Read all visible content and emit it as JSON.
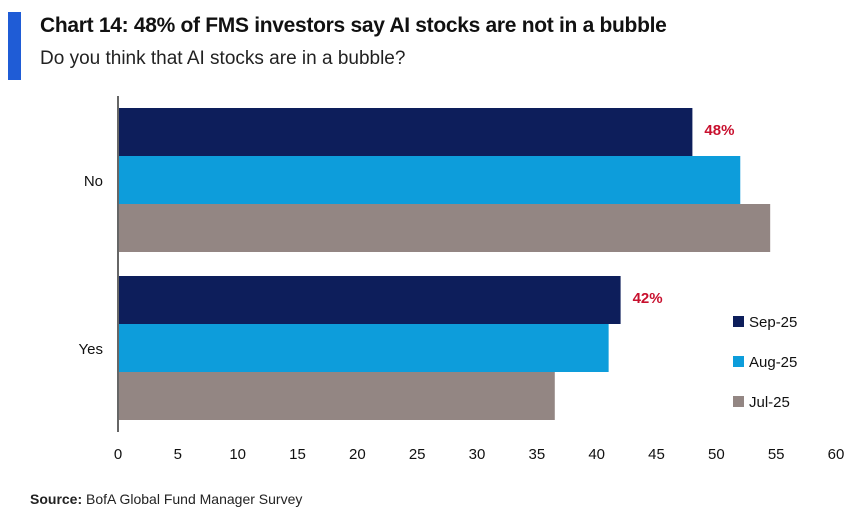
{
  "header": {
    "title": "Chart 14: 48% of FMS investors say AI stocks are not in a bubble",
    "subtitle": "Do you think that AI stocks are in a bubble?"
  },
  "source": {
    "label": "Source:",
    "text": "BofA Global Fund Manager Survey"
  },
  "colors": {
    "accent": "#1f5cd6",
    "sep25": "#0d1e5b",
    "aug25": "#0d9ddb",
    "jul25": "#938683",
    "annotation": "#c8102e"
  },
  "chart_data": {
    "type": "bar",
    "orientation": "horizontal",
    "categories": [
      "No",
      "Yes"
    ],
    "series": [
      {
        "name": "Sep-25",
        "values": [
          48,
          42
        ],
        "color": "#0d1e5b"
      },
      {
        "name": "Aug-25",
        "values": [
          52,
          41
        ],
        "color": "#0d9ddb"
      },
      {
        "name": "Jul-25",
        "values": [
          54.5,
          36.5
        ],
        "color": "#938683"
      }
    ],
    "annotations": [
      {
        "category": "No",
        "series": "Sep-25",
        "text": "48%"
      },
      {
        "category": "Yes",
        "series": "Sep-25",
        "text": "42%"
      }
    ],
    "xlim": [
      0,
      60
    ],
    "xticks": [
      0,
      5,
      10,
      15,
      20,
      25,
      30,
      35,
      40,
      45,
      50,
      55,
      60
    ],
    "grid": false,
    "legend": "bottom-right"
  }
}
